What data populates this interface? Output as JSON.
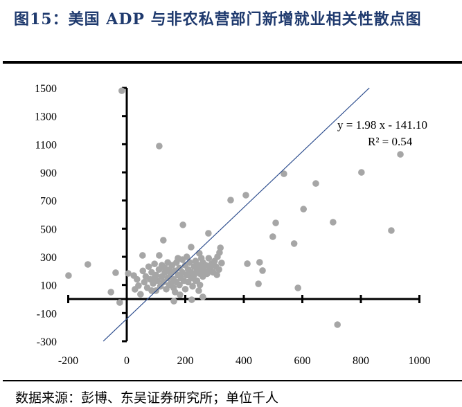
{
  "title": "图15：美国 ADP 与非农私营部门新增就业相关性散点图",
  "source": "数据来源：彭博、东吴证券研究所；单位千人",
  "chart_data": {
    "type": "scatter",
    "title": "",
    "xlabel": "",
    "ylabel": "",
    "xlim": [
      -200,
      1000
    ],
    "ylim": [
      -300,
      1500
    ],
    "xticks": [
      -200,
      0,
      200,
      400,
      600,
      800,
      1000
    ],
    "yticks": [
      -300,
      -100,
      100,
      300,
      500,
      700,
      900,
      1100,
      1300,
      1500
    ],
    "grid": false,
    "legend": "none",
    "point_color": "#a6a6a6",
    "trendline_color": "#2f4f8f",
    "trendline": {
      "slope": 1.98,
      "intercept": -141.1,
      "equation": "y = 1.98 x - 141.10",
      "r2": "R² = 0.54"
    },
    "points": [
      [
        -199,
        167
      ],
      [
        -133,
        246
      ],
      [
        -54,
        49
      ],
      [
        -38,
        187
      ],
      [
        -24,
        -25
      ],
      [
        -17,
        1480
      ],
      [
        111,
        1087
      ],
      [
        355,
        703
      ],
      [
        407,
        738
      ],
      [
        537,
        890
      ],
      [
        646,
        821
      ],
      [
        802,
        900
      ],
      [
        935,
        1028
      ],
      [
        604,
        639
      ],
      [
        509,
        541
      ],
      [
        705,
        546
      ],
      [
        904,
        487
      ],
      [
        499,
        443
      ],
      [
        572,
        394
      ],
      [
        412,
        251
      ],
      [
        454,
        261
      ],
      [
        464,
        202
      ],
      [
        450,
        108
      ],
      [
        585,
        79
      ],
      [
        720,
        -182
      ],
      [
        192,
        527
      ],
      [
        279,
        467
      ],
      [
        125,
        418
      ],
      [
        54,
        310
      ],
      [
        111,
        310
      ],
      [
        220,
        369
      ],
      [
        320,
        364
      ],
      [
        317,
        330
      ],
      [
        248,
        325
      ],
      [
        324,
        256
      ],
      [
        308,
        172
      ],
      [
        28,
        69
      ],
      [
        47,
        34
      ],
      [
        161,
        -15
      ],
      [
        222,
        -5
      ],
      [
        260,
        15
      ],
      [
        182,
        30
      ],
      [
        246,
        59
      ],
      [
        5,
        182
      ],
      [
        24,
        167
      ],
      [
        35,
        140
      ],
      [
        40,
        95
      ],
      [
        55,
        200
      ],
      [
        60,
        120
      ],
      [
        65,
        160
      ],
      [
        70,
        80
      ],
      [
        75,
        230
      ],
      [
        80,
        140
      ],
      [
        85,
        190
      ],
      [
        90,
        110
      ],
      [
        95,
        250
      ],
      [
        100,
        170
      ],
      [
        100,
        60
      ],
      [
        105,
        130
      ],
      [
        110,
        210
      ],
      [
        115,
        90
      ],
      [
        120,
        160
      ],
      [
        120,
        240
      ],
      [
        125,
        120
      ],
      [
        130,
        190
      ],
      [
        135,
        70
      ],
      [
        140,
        150
      ],
      [
        140,
        260
      ],
      [
        145,
        210
      ],
      [
        150,
        110
      ],
      [
        150,
        180
      ],
      [
        155,
        240
      ],
      [
        160,
        140
      ],
      [
        160,
        80
      ],
      [
        165,
        200
      ],
      [
        170,
        260
      ],
      [
        170,
        120
      ],
      [
        175,
        170
      ],
      [
        180,
        220
      ],
      [
        180,
        100
      ],
      [
        185,
        150
      ],
      [
        190,
        280
      ],
      [
        190,
        190
      ],
      [
        195,
        130
      ],
      [
        200,
        240
      ],
      [
        200,
        70
      ],
      [
        205,
        170
      ],
      [
        210,
        210
      ],
      [
        210,
        120
      ],
      [
        215,
        260
      ],
      [
        220,
        150
      ],
      [
        220,
        190
      ],
      [
        225,
        90
      ],
      [
        230,
        230
      ],
      [
        230,
        170
      ],
      [
        235,
        270
      ],
      [
        240,
        200
      ],
      [
        240,
        130
      ],
      [
        245,
        240
      ],
      [
        250,
        180
      ],
      [
        250,
        100
      ],
      [
        255,
        220
      ],
      [
        260,
        260
      ],
      [
        260,
        160
      ],
      [
        265,
        200
      ],
      [
        270,
        240
      ],
      [
        275,
        180
      ],
      [
        280,
        290
      ],
      [
        285,
        220
      ],
      [
        290,
        250
      ],
      [
        295,
        190
      ],
      [
        300,
        270
      ],
      [
        305,
        230
      ],
      [
        310,
        300
      ],
      [
        315,
        210
      ],
      [
        130,
        220
      ],
      [
        145,
        100
      ],
      [
        165,
        50
      ],
      [
        85,
        60
      ],
      [
        95,
        150
      ],
      [
        205,
        300
      ],
      [
        175,
        290
      ],
      [
        235,
        130
      ],
      [
        255,
        290
      ],
      [
        280,
        200
      ]
    ]
  }
}
